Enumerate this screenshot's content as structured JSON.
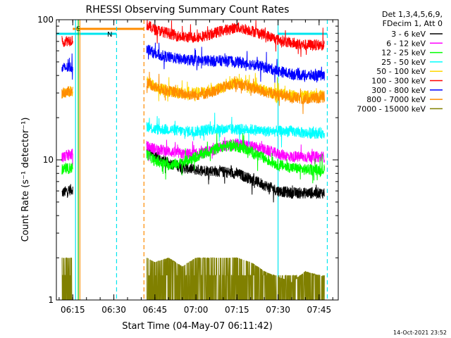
{
  "chart_data": {
    "type": "line",
    "title": "RHESSI Observing Summary Count Rates",
    "xlabel": "Start Time (04-May-07 06:11:42)",
    "ylabel": "Count Rate (s⁻¹ detector⁻¹)",
    "xlim": [
      "06:09",
      "07:52"
    ],
    "ylim": [
      1,
      100
    ],
    "yscale": "log",
    "x_ticks": [
      "06:15",
      "06:30",
      "06:45",
      "07:00",
      "07:15",
      "07:30",
      "07:45"
    ],
    "y_ticks": [
      "1",
      "10",
      "100"
    ],
    "legend_header": [
      "Det 1,3,4,5,6,9,",
      "FDecim 1, Att 0"
    ],
    "legend_position": "top-right",
    "timestamp": "14-Oct-2021 23:52",
    "flags": [
      {
        "label": "S",
        "color": "#ff8c00",
        "start": "06:15",
        "end": "06:41"
      },
      {
        "label": "N",
        "color": "#00e5ee",
        "start": "06:09",
        "end": "06:31"
      },
      {
        "label": "",
        "color": "#00e5ee",
        "start": "07:30",
        "end": "07:48"
      }
    ],
    "vlines": [
      {
        "time": "06:16",
        "color": "#00e5ee",
        "style": "solid"
      },
      {
        "time": "06:17",
        "color": "#00c000",
        "style": "solid"
      },
      {
        "time": "06:17.6",
        "color": "#ff8c00",
        "style": "solid"
      },
      {
        "time": "06:31",
        "color": "#00e5ee",
        "style": "dashed"
      },
      {
        "time": "06:41",
        "color": "#ff8c00",
        "style": "dashed"
      },
      {
        "time": "07:30",
        "color": "#00e5ee",
        "style": "solid"
      },
      {
        "time": "07:48",
        "color": "#00e5ee",
        "style": "dashed"
      }
    ],
    "series": [
      {
        "name": "3 - 6 keV",
        "color": "#000000",
        "segments": [
          {
            "x": [
              "06:11",
              "06:15"
            ],
            "y": [
              5.8,
              6.2
            ]
          },
          {
            "x": [
              "06:42",
              "06:45",
              "06:50",
              "06:55",
              "07:00",
              "07:05",
              "07:10",
              "07:15",
              "07:20",
              "07:25",
              "07:30",
              "07:35",
              "07:40",
              "07:47"
            ],
            "y": [
              12.5,
              10.5,
              9.5,
              8.8,
              8.5,
              8.4,
              8.2,
              8.0,
              7.3,
              6.6,
              6.0,
              5.8,
              5.8,
              5.8
            ]
          }
        ]
      },
      {
        "name": "6 - 12 keV",
        "color": "#ff00ff",
        "segments": [
          {
            "x": [
              "06:11",
              "06:15"
            ],
            "y": [
              10.5,
              11.0
            ]
          },
          {
            "x": [
              "06:42",
              "06:45",
              "06:50",
              "06:55",
              "07:00",
              "07:05",
              "07:10",
              "07:15",
              "07:20",
              "07:25",
              "07:30",
              "07:35",
              "07:40",
              "07:47"
            ],
            "y": [
              12.5,
              12.0,
              11.5,
              11.0,
              11.0,
              11.5,
              12.5,
              13.0,
              12.5,
              11.8,
              11.0,
              10.5,
              10.5,
              10.5
            ]
          }
        ]
      },
      {
        "name": "12 - 25 keV",
        "color": "#00ff00",
        "segments": [
          {
            "x": [
              "06:11",
              "06:15"
            ],
            "y": [
              8.5,
              8.8
            ]
          },
          {
            "x": [
              "06:42",
              "06:45",
              "06:50",
              "06:55",
              "07:00",
              "07:05",
              "07:10",
              "07:15",
              "07:20",
              "07:25",
              "07:30",
              "07:35",
              "07:40",
              "07:47"
            ],
            "y": [
              11.0,
              9.8,
              9.2,
              9.5,
              10.5,
              11.5,
              12.5,
              12.5,
              11.5,
              10.2,
              9.2,
              8.8,
              8.5,
              8.5
            ]
          }
        ]
      },
      {
        "name": "25 - 50 keV",
        "color": "#00ffff",
        "segments": [
          {
            "x": [
              "06:42",
              "06:45",
              "06:50",
              "06:55",
              "07:00",
              "07:05",
              "07:10",
              "07:15",
              "07:20",
              "07:25",
              "07:30",
              "07:35",
              "07:40",
              "07:47"
            ],
            "y": [
              17.5,
              16.5,
              16.5,
              16.0,
              16.0,
              16.5,
              16.5,
              16.5,
              16.5,
              16.0,
              16.0,
              16.0,
              15.5,
              15.5
            ]
          }
        ]
      },
      {
        "name": "50 - 100 keV",
        "color": "#ffd700",
        "segments": [
          {
            "x": [
              "06:11",
              "06:15"
            ],
            "y": [
              30,
              31
            ]
          },
          {
            "x": [
              "06:42",
              "06:45",
              "06:50",
              "06:55",
              "07:00",
              "07:05",
              "07:10",
              "07:15",
              "07:20",
              "07:25",
              "07:30",
              "07:35",
              "07:40",
              "07:47"
            ],
            "y": [
              37,
              33,
              31,
              30,
              30,
              31,
              33,
              36,
              34,
              31,
              29.5,
              29,
              28.5,
              29
            ]
          }
        ]
      },
      {
        "name": "100 - 300 keV",
        "color": "#ff0000",
        "segments": [
          {
            "x": [
              "06:11",
              "06:15"
            ],
            "y": [
              70,
              72
            ]
          },
          {
            "x": [
              "06:42",
              "06:45",
              "06:50",
              "06:55",
              "07:00",
              "07:05",
              "07:10",
              "07:15",
              "07:20",
              "07:25",
              "07:30",
              "07:35",
              "07:40",
              "07:47"
            ],
            "y": [
              92,
              85,
              80,
              75,
              75,
              78,
              84,
              88,
              84,
              78,
              72,
              68,
              66,
              66
            ]
          }
        ]
      },
      {
        "name": "300 - 800 keV",
        "color": "#0000ff",
        "segments": [
          {
            "x": [
              "06:11",
              "06:15"
            ],
            "y": [
              45,
              46
            ]
          },
          {
            "x": [
              "06:42",
              "06:45",
              "06:50",
              "06:55",
              "07:00",
              "07:05",
              "07:10",
              "07:15",
              "07:20",
              "07:25",
              "07:30",
              "07:35",
              "07:40",
              "07:47"
            ],
            "y": [
              63,
              57,
              54,
              52,
              51,
              51,
              51,
              50,
              48,
              46,
              43,
              41,
              40,
              40
            ]
          }
        ]
      },
      {
        "name": "800 - 7000 keV",
        "color": "#ff8c00",
        "segments": [
          {
            "x": [
              "06:11",
              "06:15"
            ],
            "y": [
              30,
              31
            ]
          },
          {
            "x": [
              "06:42",
              "06:45",
              "06:50",
              "06:55",
              "07:00",
              "07:05",
              "07:10",
              "07:15",
              "07:20",
              "07:25",
              "07:30",
              "07:35",
              "07:40",
              "07:47"
            ],
            "y": [
              36,
              33,
              31,
              29.5,
              29,
              30,
              33,
              35,
              33,
              30.5,
              29,
              28,
              27,
              28
            ]
          }
        ]
      },
      {
        "name": "7000 - 15000 keV",
        "color": "#808000",
        "segments": [
          {
            "x": [
              "06:11",
              "06:15"
            ],
            "y": [
              1.5,
              1.5
            ]
          },
          {
            "x": [
              "06:42",
              "06:45",
              "06:50",
              "06:55",
              "07:00",
              "07:05",
              "07:10",
              "07:15",
              "07:20",
              "07:25",
              "07:30",
              "07:35",
              "07:40",
              "07:47"
            ],
            "y": [
              1.5,
              1.4,
              1.5,
              1.3,
              1.5,
              1.5,
              1.6,
              1.5,
              1.4,
              1.2,
              1.1,
              1.0,
              1.2,
              1.1
            ]
          }
        ]
      }
    ]
  }
}
